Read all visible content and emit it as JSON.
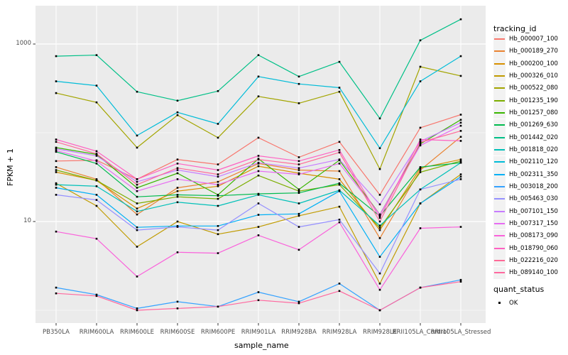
{
  "chart_data": {
    "type": "line",
    "title": "",
    "xlabel": "sample_name",
    "ylabel": "FPKM + 1",
    "panel_bg": "#EBEBEB",
    "grid_color": "#FFFFFF",
    "point_style": {
      "shape": "square",
      "color": "#000000",
      "size": 2.6
    },
    "x_categories": [
      "PB350LA",
      "RRIM600LA",
      "RRIM600LE",
      "RRIM600SE",
      "RRIM600PE",
      "RRIM901LA",
      "RRIM928BA",
      "RRIM928LA",
      "RRIM928LE",
      "RRII105LA_Control",
      "RRII105LA_Stressed"
    ],
    "y_axis": {
      "scale": "log10",
      "tick_labels": [
        "1000",
        "10"
      ],
      "tick_values": [
        1000,
        10
      ],
      "minor_gridline_values": [
        100,
        1
      ],
      "range": [
        0.75,
        2700
      ]
    },
    "legend": {
      "color_title": "tracking_id",
      "shape_title": "quant_status",
      "shape_entries": [
        {
          "label": "OK"
        }
      ]
    },
    "series": [
      {
        "name": "Hb_000007_100",
        "color": "#F8766D",
        "values": [
          48,
          49,
          30,
          50,
          44,
          88,
          53,
          79,
          20,
          114,
          160
        ]
      },
      {
        "name": "Hb_000189_270",
        "color": "#EA8331",
        "values": [
          41,
          30,
          12,
          24,
          28,
          45,
          38,
          37,
          6.5,
          38,
          90
        ]
      },
      {
        "name": "Hb_000200_100",
        "color": "#D89000",
        "values": [
          36,
          29,
          14,
          22,
          25,
          42,
          35,
          30,
          8,
          40,
          50
        ]
      },
      {
        "name": "Hb_000326_010",
        "color": "#C09B00",
        "values": [
          27,
          15,
          5.2,
          10,
          7.2,
          8.7,
          11.6,
          14.7,
          2.0,
          16,
          34
        ]
      },
      {
        "name": "Hb_000522_080",
        "color": "#A3A500",
        "values": [
          280,
          220,
          68,
          158,
          88,
          257,
          215,
          290,
          39,
          555,
          437
        ]
      },
      {
        "name": "Hb_001235_190",
        "color": "#7CAE00",
        "values": [
          38,
          29,
          16,
          19,
          18,
          33,
          22,
          26,
          8.5,
          36,
          48
        ]
      },
      {
        "name": "Hb_001257_080",
        "color": "#39B600",
        "values": [
          68,
          57,
          24,
          35,
          20,
          51,
          23,
          49,
          12,
          75,
          140
        ]
      },
      {
        "name": "Hb_001269_630",
        "color": "#00BB4E",
        "values": [
          61,
          45,
          19,
          20,
          19.5,
          20.5,
          21,
          27,
          11.5,
          41,
          46
        ]
      },
      {
        "name": "Hb_001442_020",
        "color": "#00C087",
        "values": [
          730,
          750,
          290,
          230,
          295,
          750,
          430,
          630,
          145,
          1100,
          1900
        ]
      },
      {
        "name": "Hb_001818_020",
        "color": "#00C0B8",
        "values": [
          26,
          25,
          13,
          16.5,
          15,
          20,
          16,
          22.5,
          9,
          23,
          46
        ]
      },
      {
        "name": "Hb_002110_120",
        "color": "#00BCD8",
        "values": [
          380,
          340,
          93,
          170,
          126,
          430,
          355,
          322,
          67,
          380,
          730
        ]
      },
      {
        "name": "Hb_002311_350",
        "color": "#00B0F6",
        "values": [
          24,
          20,
          8.6,
          8.9,
          8.9,
          11.9,
          12.2,
          22,
          4.0,
          16,
          32
        ]
      },
      {
        "name": "Hb_003018_200",
        "color": "#35A2FF",
        "values": [
          1.8,
          1.5,
          1.05,
          1.25,
          1.1,
          1.6,
          1.25,
          2.0,
          1.0,
          1.8,
          2.2
        ]
      },
      {
        "name": "Hb_005463_030",
        "color": "#9590FF",
        "values": [
          20,
          17.5,
          8.0,
          8.7,
          8.0,
          16,
          8.7,
          10.5,
          2.6,
          23,
          30
        ]
      },
      {
        "name": "Hb_007101_150",
        "color": "#C77CFF",
        "values": [
          66,
          55,
          28,
          38,
          32,
          46,
          40,
          50,
          15.6,
          80,
          130
        ]
      },
      {
        "name": "Hb_007317_150",
        "color": "#E76BF3",
        "values": [
          63,
          48,
          22,
          30,
          26,
          37,
          34,
          45,
          12,
          72,
          120
        ]
      },
      {
        "name": "Hb_008173_090",
        "color": "#FA62DB",
        "values": [
          7.7,
          6.4,
          2.4,
          4.5,
          4.4,
          7.0,
          4.8,
          9.8,
          1.7,
          8.4,
          8.7
        ]
      },
      {
        "name": "Hb_018790_060",
        "color": "#FF61C2",
        "values": [
          84,
          62,
          30,
          45,
          38,
          55,
          48,
          64,
          11,
          84,
          81
        ]
      },
      {
        "name": "Hb_022216_020",
        "color": "#FF6A98",
        "values": [
          79,
          58,
          26,
          40,
          34,
          50,
          44,
          60,
          10,
          78,
          105
        ]
      },
      {
        "name": "Hb_089140_100",
        "color": "#FF689F",
        "values": [
          1.55,
          1.45,
          1.0,
          1.05,
          1.1,
          1.3,
          1.2,
          1.65,
          1.0,
          1.8,
          2.1
        ]
      }
    ]
  }
}
